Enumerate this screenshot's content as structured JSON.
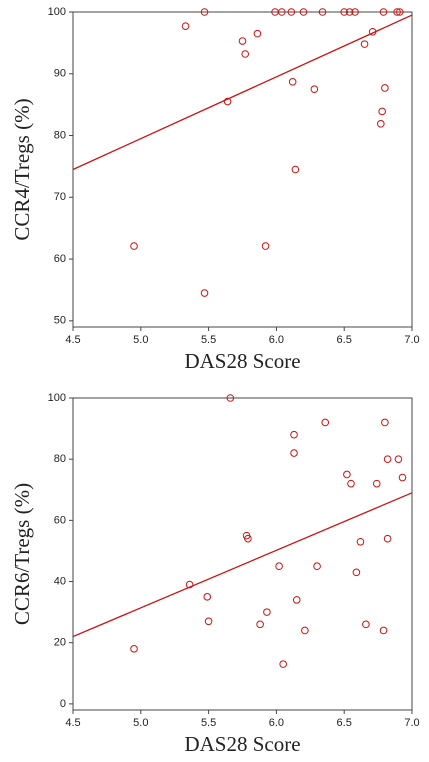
{
  "chart_data": [
    {
      "type": "scatter",
      "xlabel": "DAS28  Score",
      "ylabel": "CCR4/Tregs (%)",
      "color": "#cc1111",
      "x": [
        5.47,
        5.33,
        5.75,
        5.77,
        5.86,
        5.64,
        5.99,
        6.04,
        6.11,
        6.2,
        6.34,
        6.5,
        6.54,
        6.58,
        6.79,
        6.89,
        6.91,
        6.71,
        6.65,
        6.12,
        6.28,
        6.8,
        6.78,
        6.77,
        6.14,
        4.95,
        5.92,
        5.47
      ],
      "y": [
        100,
        97.7,
        95.3,
        93.2,
        96.5,
        85.5,
        100,
        100,
        100,
        100,
        100,
        100,
        100,
        100,
        100,
        100,
        100,
        96.8,
        94.8,
        88.7,
        87.5,
        87.7,
        83.9,
        81.9,
        74.5,
        62.1,
        62.1,
        54.5
      ],
      "trendline": {
        "x": [
          4.5,
          7.0
        ],
        "y": [
          74.5,
          99.5
        ]
      },
      "xlim": [
        4.5,
        7.0
      ],
      "ylim": [
        49,
        100
      ],
      "xticks": [
        {
          "value": 4.5,
          "label": "4.5"
        },
        {
          "value": 5,
          "label": "5.0"
        },
        {
          "value": 5.5,
          "label": "5.5"
        },
        {
          "value": 6,
          "label": "6.0"
        },
        {
          "value": 6.5,
          "label": "6.5"
        },
        {
          "value": 7,
          "label": "7.0"
        }
      ],
      "yticks": [
        50,
        60,
        70,
        80,
        90,
        100
      ]
    },
    {
      "type": "scatter",
      "xlabel": "DAS28  Score",
      "ylabel": "CCR6/Tregs (%)",
      "color": "#cc1111",
      "x": [
        4.95,
        5.36,
        5.49,
        5.5,
        5.66,
        5.78,
        5.79,
        5.88,
        5.93,
        6.02,
        6.05,
        6.13,
        6.13,
        6.15,
        6.21,
        6.3,
        6.36,
        6.52,
        6.55,
        6.59,
        6.62,
        6.66,
        6.74,
        6.79,
        6.8,
        6.82,
        6.82,
        6.9,
        6.93
      ],
      "y": [
        18,
        39,
        35,
        27,
        100,
        55,
        54,
        26,
        30,
        45,
        13,
        88,
        82,
        34,
        24,
        45,
        92,
        75,
        72,
        43,
        53,
        26,
        72,
        24,
        92,
        80,
        54,
        80,
        74
      ],
      "trendline": {
        "x": [
          4.5,
          7.0
        ],
        "y": [
          22,
          69
        ]
      },
      "xlim": [
        4.5,
        7.0
      ],
      "ylim": [
        -2,
        100
      ],
      "xticks": [
        {
          "value": 4.5,
          "label": "4.5"
        },
        {
          "value": 5,
          "label": "5.0"
        },
        {
          "value": 5.5,
          "label": "5.5"
        },
        {
          "value": 6,
          "label": "6.0"
        },
        {
          "value": 6.5,
          "label": "6.5"
        },
        {
          "value": 7,
          "label": "7.0"
        }
      ],
      "yticks": [
        0,
        20,
        40,
        60,
        80,
        100
      ]
    }
  ]
}
